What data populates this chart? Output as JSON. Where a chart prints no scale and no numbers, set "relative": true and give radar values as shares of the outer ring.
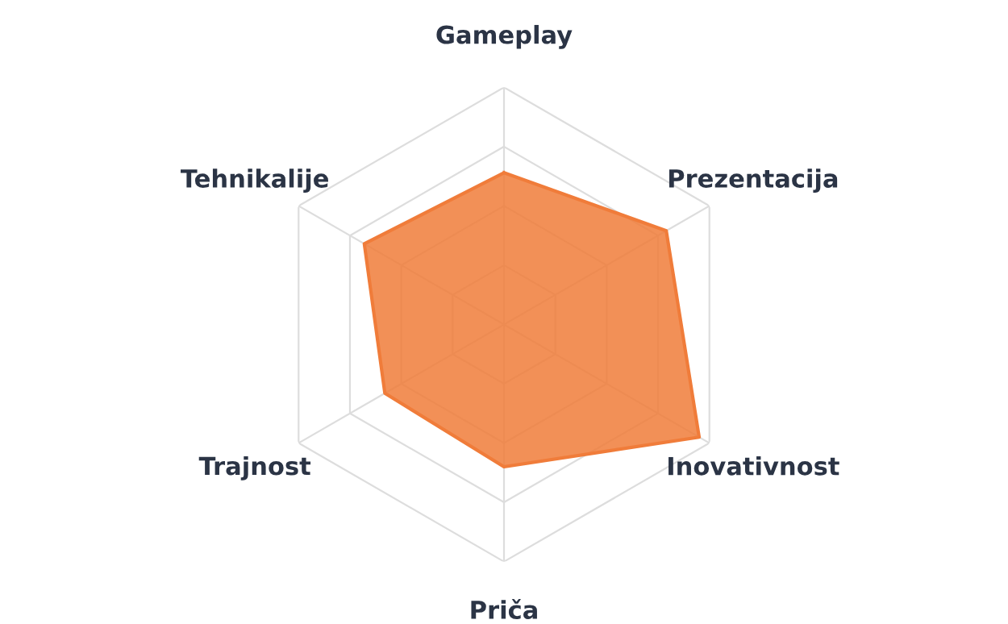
{
  "chart_data": {
    "type": "radar",
    "relative": true,
    "grid": true,
    "categories": [
      "Gameplay",
      "Prezentacija",
      "Inovativnost",
      "Priča",
      "Trajnost",
      "Tehnikalije"
    ],
    "series": [
      {
        "color": "#f07c3a",
        "values": [
          0.64,
          0.79,
          0.95,
          0.6,
          0.58,
          0.68
        ]
      }
    ]
  }
}
